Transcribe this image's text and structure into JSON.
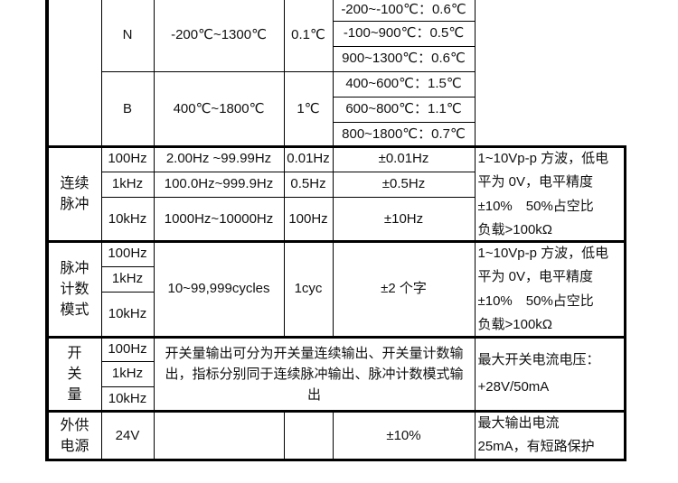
{
  "thermocouple": [
    {
      "type": "N",
      "range": "-200℃~1300℃",
      "resolution": "0.1℃",
      "accuracy": [
        "-200~-100℃：0.6℃",
        "-100~900℃：0.5℃",
        "900~1300℃：0.6℃"
      ]
    },
    {
      "type": "B",
      "range": "400℃~1800℃",
      "resolution": "1℃",
      "accuracy": [
        "400~600℃：1.5℃",
        "600~800℃：1.1℃",
        "800~1800℃：0.7℃"
      ]
    }
  ],
  "continuous": {
    "category": "连续脉冲",
    "rows": [
      {
        "freq": "100Hz",
        "range": "2.00Hz ~99.99Hz",
        "resolution": "0.01Hz",
        "accuracy": "±0.01Hz"
      },
      {
        "freq": "1kHz",
        "range": "100.0Hz~999.9Hz",
        "resolution": "0.5Hz",
        "accuracy": "±0.5Hz"
      },
      {
        "freq": "10kHz",
        "range": "1000Hz~10000Hz",
        "resolution": "100Hz",
        "accuracy": "±10Hz"
      }
    ],
    "note": [
      "1~10Vp-p 方波，低电",
      "平为 0V，电平精度",
      "±10%　50%占空比",
      "负载>100kΩ"
    ]
  },
  "count": {
    "category": "脉冲计数模式",
    "freqs": [
      "100Hz",
      "1kHz",
      "10kHz"
    ],
    "range": "10~99,999cycles",
    "resolution": "1cyc",
    "accuracy": "±2 个字",
    "note": [
      "1~10Vp-p 方波，低电",
      "平为 0V，电平精度",
      "±10%　50%占空比",
      "负载>100kΩ"
    ]
  },
  "switch": {
    "category": "开关量",
    "freqs": [
      "100Hz",
      "1kHz",
      "10kHz"
    ],
    "description": "开关量输出可分为开关量连续输出、开关量计数输出，指标分别同于连续脉冲输出、脉冲计数模式输出",
    "note": [
      "最大开关电流电压：",
      "+28V/50mA"
    ]
  },
  "supply": {
    "category": "外供电源",
    "value": "24V",
    "accuracy": "±10%",
    "note": [
      "最大输出电流",
      "25mA，有短路保护"
    ]
  }
}
